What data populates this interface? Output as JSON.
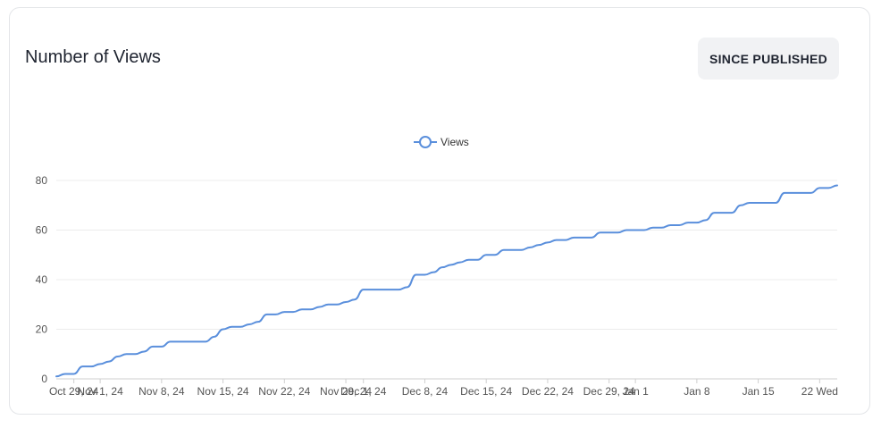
{
  "header": {
    "title": "Number of Views",
    "since_published_label": "SINCE PUBLISHED"
  },
  "colors": {
    "line": "#5a8fdc",
    "grid": "#ececec",
    "axis": "#cfcfcf",
    "tick_text": "#555555"
  },
  "chart_data": {
    "type": "line",
    "legend_position": "top-center",
    "grid": true,
    "ylim": [
      0,
      80
    ],
    "yticks": [
      0,
      20,
      40,
      60,
      80
    ],
    "xlim": [
      "2024-10-27",
      "2025-01-24"
    ],
    "xticks": [
      {
        "date": "2024-10-29",
        "label": "Oct 29, 24"
      },
      {
        "date": "2024-11-01",
        "label": "Nov 1, 24"
      },
      {
        "date": "2024-11-08",
        "label": "Nov 8, 24"
      },
      {
        "date": "2024-11-15",
        "label": "Nov 15, 24"
      },
      {
        "date": "2024-11-22",
        "label": "Nov 22, 24"
      },
      {
        "date": "2024-11-29",
        "label": "Nov 29, 24"
      },
      {
        "date": "2024-12-01",
        "label": "Dec 1, 24"
      },
      {
        "date": "2024-12-08",
        "label": "Dec 8, 24"
      },
      {
        "date": "2024-12-15",
        "label": "Dec 15, 24"
      },
      {
        "date": "2024-12-22",
        "label": "Dec 22, 24"
      },
      {
        "date": "2024-12-29",
        "label": "Dec 29, 24"
      },
      {
        "date": "2025-01-01",
        "label": "Jan 1"
      },
      {
        "date": "2025-01-08",
        "label": "Jan 8"
      },
      {
        "date": "2025-01-15",
        "label": "Jan 15"
      },
      {
        "date": "2025-01-22",
        "label": "22 Wed"
      }
    ],
    "series": [
      {
        "name": "Views",
        "points": [
          [
            "2024-10-27",
            1
          ],
          [
            "2024-10-28",
            2
          ],
          [
            "2024-10-29",
            2
          ],
          [
            "2024-10-30",
            5
          ],
          [
            "2024-10-31",
            5
          ],
          [
            "2024-11-01",
            6
          ],
          [
            "2024-11-02",
            7
          ],
          [
            "2024-11-03",
            9
          ],
          [
            "2024-11-04",
            10
          ],
          [
            "2024-11-05",
            10
          ],
          [
            "2024-11-06",
            11
          ],
          [
            "2024-11-07",
            13
          ],
          [
            "2024-11-08",
            13
          ],
          [
            "2024-11-09",
            15
          ],
          [
            "2024-11-10",
            15
          ],
          [
            "2024-11-11",
            15
          ],
          [
            "2024-11-12",
            15
          ],
          [
            "2024-11-13",
            15
          ],
          [
            "2024-11-14",
            17
          ],
          [
            "2024-11-15",
            20
          ],
          [
            "2024-11-16",
            21
          ],
          [
            "2024-11-17",
            21
          ],
          [
            "2024-11-18",
            22
          ],
          [
            "2024-11-19",
            23
          ],
          [
            "2024-11-20",
            26
          ],
          [
            "2024-11-21",
            26
          ],
          [
            "2024-11-22",
            27
          ],
          [
            "2024-11-23",
            27
          ],
          [
            "2024-11-24",
            28
          ],
          [
            "2024-11-25",
            28
          ],
          [
            "2024-11-26",
            29
          ],
          [
            "2024-11-27",
            30
          ],
          [
            "2024-11-28",
            30
          ],
          [
            "2024-11-29",
            31
          ],
          [
            "2024-11-30",
            32
          ],
          [
            "2024-12-01",
            36
          ],
          [
            "2024-12-02",
            36
          ],
          [
            "2024-12-03",
            36
          ],
          [
            "2024-12-04",
            36
          ],
          [
            "2024-12-05",
            36
          ],
          [
            "2024-12-06",
            37
          ],
          [
            "2024-12-07",
            42
          ],
          [
            "2024-12-08",
            42
          ],
          [
            "2024-12-09",
            43
          ],
          [
            "2024-12-10",
            45
          ],
          [
            "2024-12-11",
            46
          ],
          [
            "2024-12-12",
            47
          ],
          [
            "2024-12-13",
            48
          ],
          [
            "2024-12-14",
            48
          ],
          [
            "2024-12-15",
            50
          ],
          [
            "2024-12-16",
            50
          ],
          [
            "2024-12-17",
            52
          ],
          [
            "2024-12-18",
            52
          ],
          [
            "2024-12-19",
            52
          ],
          [
            "2024-12-20",
            53
          ],
          [
            "2024-12-21",
            54
          ],
          [
            "2024-12-22",
            55
          ],
          [
            "2024-12-23",
            56
          ],
          [
            "2024-12-24",
            56
          ],
          [
            "2024-12-25",
            57
          ],
          [
            "2024-12-26",
            57
          ],
          [
            "2024-12-27",
            57
          ],
          [
            "2024-12-28",
            59
          ],
          [
            "2024-12-29",
            59
          ],
          [
            "2024-12-30",
            59
          ],
          [
            "2024-12-31",
            60
          ],
          [
            "2025-01-01",
            60
          ],
          [
            "2025-01-02",
            60
          ],
          [
            "2025-01-03",
            61
          ],
          [
            "2025-01-04",
            61
          ],
          [
            "2025-01-05",
            62
          ],
          [
            "2025-01-06",
            62
          ],
          [
            "2025-01-07",
            63
          ],
          [
            "2025-01-08",
            63
          ],
          [
            "2025-01-09",
            64
          ],
          [
            "2025-01-10",
            67
          ],
          [
            "2025-01-11",
            67
          ],
          [
            "2025-01-12",
            67
          ],
          [
            "2025-01-13",
            70
          ],
          [
            "2025-01-14",
            71
          ],
          [
            "2025-01-15",
            71
          ],
          [
            "2025-01-16",
            71
          ],
          [
            "2025-01-17",
            71
          ],
          [
            "2025-01-18",
            75
          ],
          [
            "2025-01-19",
            75
          ],
          [
            "2025-01-20",
            75
          ],
          [
            "2025-01-21",
            75
          ],
          [
            "2025-01-22",
            77
          ],
          [
            "2025-01-23",
            77
          ],
          [
            "2025-01-24",
            78
          ]
        ]
      }
    ]
  }
}
